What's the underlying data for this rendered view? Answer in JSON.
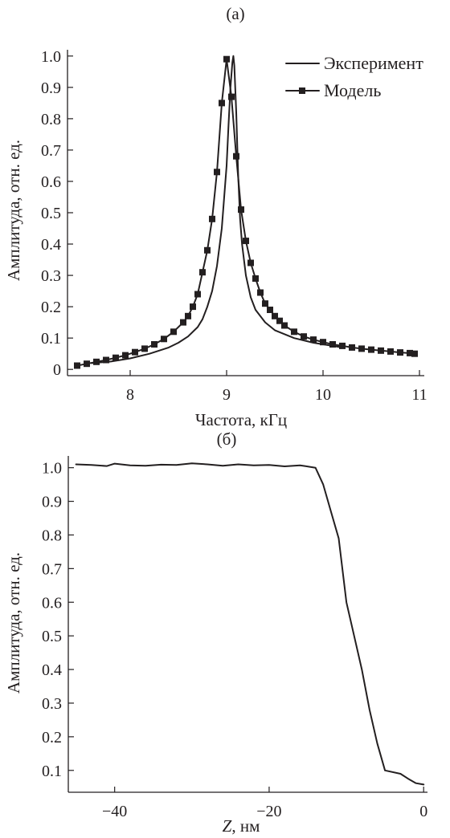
{
  "colors": {
    "ink": "#231f20",
    "background": "#ffffff"
  },
  "chart_data": [
    {
      "panel_label": "(а)",
      "type": "line",
      "title": "",
      "xlabel": "Частота, кГц",
      "ylabel": "Амплитуда, отн. ед.",
      "xlim": [
        7.35,
        11.05
      ],
      "ylim": [
        -0.02,
        1.02
      ],
      "x_ticks": [
        8,
        9,
        10,
        11
      ],
      "x_tick_labels": [
        "8",
        "9",
        "10",
        "11"
      ],
      "y_ticks": [
        0,
        0.1,
        0.2,
        0.3,
        0.4,
        0.5,
        0.6,
        0.7,
        0.8,
        0.9,
        1.0
      ],
      "y_tick_labels": [
        "0",
        "0.1",
        "0.2",
        "0.3",
        "0.4",
        "0.5",
        "0.6",
        "0.7",
        "0.8",
        "0.9",
        "1.0"
      ],
      "grid": false,
      "legend_position": "top-right",
      "series": [
        {
          "name": "Эксперимент",
          "style": "line",
          "x": [
            7.6,
            7.8,
            8.0,
            8.2,
            8.4,
            8.5,
            8.6,
            8.7,
            8.75,
            8.8,
            8.85,
            8.9,
            8.95,
            9.0,
            9.02,
            9.04,
            9.06,
            9.07,
            9.08,
            9.1,
            9.12,
            9.14,
            9.16,
            9.2,
            9.25,
            9.3,
            9.4,
            9.5,
            9.7,
            9.9,
            10.2
          ],
          "y": [
            0.02,
            0.025,
            0.035,
            0.05,
            0.07,
            0.085,
            0.105,
            0.135,
            0.16,
            0.2,
            0.25,
            0.33,
            0.45,
            0.65,
            0.78,
            0.9,
            0.98,
            1.0,
            0.97,
            0.82,
            0.62,
            0.48,
            0.4,
            0.3,
            0.23,
            0.19,
            0.15,
            0.125,
            0.1,
            0.085,
            0.07
          ]
        },
        {
          "name": "Модель",
          "style": "line-markers",
          "x": [
            7.45,
            7.55,
            7.65,
            7.75,
            7.85,
            7.95,
            8.05,
            8.15,
            8.25,
            8.35,
            8.45,
            8.55,
            8.6,
            8.65,
            8.7,
            8.75,
            8.8,
            8.85,
            8.9,
            8.95,
            9.0,
            9.05,
            9.1,
            9.15,
            9.2,
            9.25,
            9.3,
            9.35,
            9.4,
            9.45,
            9.5,
            9.55,
            9.6,
            9.7,
            9.8,
            9.9,
            10.0,
            10.1,
            10.2,
            10.3,
            10.4,
            10.5,
            10.6,
            10.7,
            10.8,
            10.9,
            10.95
          ],
          "y": [
            0.012,
            0.018,
            0.024,
            0.03,
            0.037,
            0.045,
            0.055,
            0.066,
            0.08,
            0.097,
            0.12,
            0.15,
            0.17,
            0.2,
            0.24,
            0.31,
            0.38,
            0.48,
            0.63,
            0.85,
            0.99,
            0.87,
            0.68,
            0.51,
            0.41,
            0.34,
            0.29,
            0.245,
            0.21,
            0.19,
            0.17,
            0.155,
            0.14,
            0.12,
            0.105,
            0.095,
            0.087,
            0.08,
            0.075,
            0.07,
            0.066,
            0.063,
            0.06,
            0.057,
            0.054,
            0.052,
            0.05
          ]
        }
      ]
    },
    {
      "panel_label": "(б)",
      "type": "line",
      "title": "",
      "xlabel": "Z, нм",
      "xlabel_parts": {
        "variable": "Z",
        "unit": ", нм"
      },
      "ylabel": "Амплитуда, отн. ед.",
      "xlim": [
        -46,
        0.5
      ],
      "ylim": [
        0.035,
        1.035
      ],
      "x_ticks": [
        -40,
        -20,
        0
      ],
      "x_tick_labels": [
        "−40",
        "−20",
        "0"
      ],
      "y_ticks": [
        0.1,
        0.2,
        0.3,
        0.4,
        0.5,
        0.6,
        0.7,
        0.8,
        0.9,
        1.0
      ],
      "y_tick_labels": [
        "0.1",
        "0.2",
        "0.3",
        "0.4",
        "0.5",
        "0.6",
        "0.7",
        "0.8",
        "0.9",
        "1.0"
      ],
      "grid": false,
      "series": [
        {
          "x": [
            -45,
            -43,
            -41,
            -40,
            -38,
            -36,
            -34,
            -32,
            -30,
            -28,
            -26,
            -24,
            -22,
            -20,
            -18,
            -16,
            -14,
            -13,
            -12,
            -11,
            -10,
            -9,
            -8,
            -7,
            -6,
            -5,
            -3,
            -2,
            -1,
            0
          ],
          "y": [
            1.01,
            1.008,
            1.005,
            1.012,
            1.007,
            1.006,
            1.009,
            1.008,
            1.013,
            1.01,
            1.006,
            1.01,
            1.007,
            1.008,
            1.004,
            1.007,
            1.0,
            0.95,
            0.87,
            0.79,
            0.6,
            0.5,
            0.4,
            0.28,
            0.18,
            0.1,
            0.09,
            0.075,
            0.062,
            0.058
          ]
        }
      ]
    }
  ]
}
